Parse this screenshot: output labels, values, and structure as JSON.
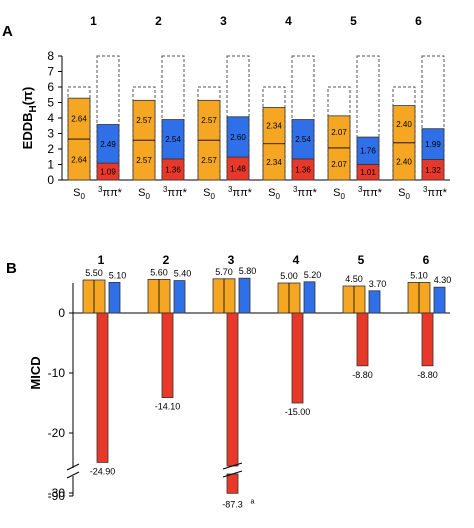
{
  "panel_labels": {
    "a": "A",
    "b": "B"
  },
  "colors": {
    "orange": "#f5a623",
    "blue": "#2f6fe8",
    "red": "#e8382a",
    "dashed": "#555555",
    "outline": "#333333"
  },
  "chart_data": [
    {
      "type": "bar",
      "stacked": true,
      "panel": "A",
      "ylabel": "EDDB_H(π)",
      "ylabel_main": "EDDB",
      "ylabel_sub": "H",
      "ylabel_suffix": "(π)",
      "ylim": [
        0,
        8
      ],
      "yticks": [
        0,
        1,
        2,
        3,
        4,
        5,
        6,
        7,
        8
      ],
      "state_labels": {
        "s0_main": "S",
        "s0_sub": "0",
        "t_sup": "3",
        "t_main": "ππ*"
      },
      "groups": [
        {
          "label": "1",
          "s0": {
            "lower": 2.64,
            "upper": 2.64,
            "dashed_top": 6.0
          },
          "t": {
            "red": 1.09,
            "blue": 2.49,
            "dashed_top": 8.0
          }
        },
        {
          "label": "2",
          "s0": {
            "lower": 2.57,
            "upper": 2.57,
            "dashed_top": 6.0
          },
          "t": {
            "red": 1.36,
            "blue": 2.54,
            "dashed_top": 8.0
          }
        },
        {
          "label": "3",
          "s0": {
            "lower": 2.57,
            "upper": 2.57,
            "dashed_top": 6.0
          },
          "t": {
            "red": 1.48,
            "blue": 2.6,
            "dashed_top": 8.0
          }
        },
        {
          "label": "4",
          "s0": {
            "lower": 2.34,
            "upper": 2.34,
            "dashed_top": 6.0
          },
          "t": {
            "red": 1.36,
            "blue": 2.54,
            "dashed_top": 8.0
          }
        },
        {
          "label": "5",
          "s0": {
            "lower": 2.07,
            "upper": 2.07,
            "dashed_top": 6.0
          },
          "t": {
            "red": 1.01,
            "blue": 1.76,
            "dashed_top": 8.0
          }
        },
        {
          "label": "6",
          "s0": {
            "lower": 2.4,
            "upper": 2.4,
            "dashed_top": 6.0
          },
          "t": {
            "red": 1.32,
            "blue": 1.99,
            "dashed_top": 8.0
          }
        }
      ]
    },
    {
      "type": "bar",
      "panel": "B",
      "ylabel": "MICD",
      "ylim": [
        -90,
        5
      ],
      "axis_break": true,
      "yticks": [
        "0",
        "-10",
        "-20",
        "-30",
        "-90"
      ],
      "groups": [
        {
          "label": "1",
          "s0": 5.5,
          "t": 5.1,
          "neg": -24.9,
          "s0_label": "5.50",
          "t_label": "5.10",
          "neg_label": "-24.90"
        },
        {
          "label": "2",
          "s0": 5.6,
          "t": 5.4,
          "neg": -14.1,
          "s0_label": "5.60",
          "t_label": "5.40",
          "neg_label": "-14.10"
        },
        {
          "label": "3",
          "s0": 5.7,
          "t": 5.8,
          "neg": -87.3,
          "s0_label": "5.70",
          "t_label": "5.80",
          "neg_label": "-87.3",
          "neg_footnote": "a"
        },
        {
          "label": "4",
          "s0": 5.0,
          "t": 5.2,
          "neg": -15.0,
          "s0_label": "5.00",
          "t_label": "5.20",
          "neg_label": "-15.00"
        },
        {
          "label": "5",
          "s0": 4.5,
          "t": 3.7,
          "neg": -8.8,
          "s0_label": "4.50",
          "t_label": "3.70",
          "neg_label": "-8.80"
        },
        {
          "label": "6",
          "s0": 5.1,
          "t": 4.3,
          "neg": -8.8,
          "s0_label": "5.10",
          "t_label": "4.30",
          "neg_label": "-8.80"
        }
      ]
    }
  ]
}
